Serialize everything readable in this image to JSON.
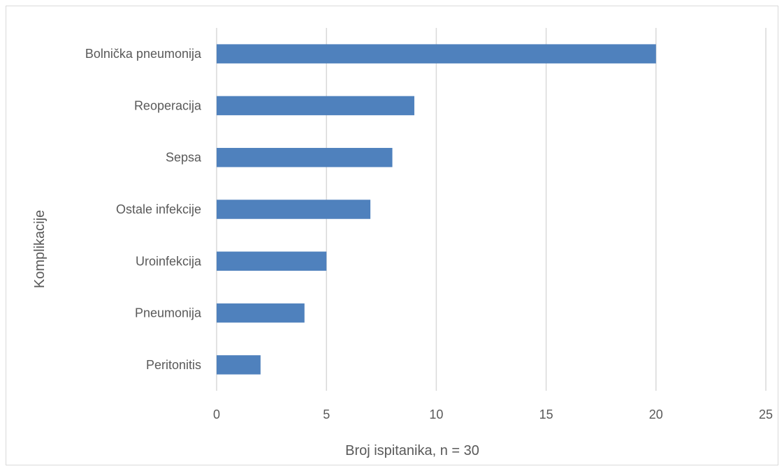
{
  "chart_data": {
    "type": "bar",
    "orientation": "horizontal",
    "title": "",
    "xlabel": "Broj ispitanika, n = 30",
    "ylabel": "Komplikacije",
    "categories": [
      "Bolnička pneumonija",
      "Reoperacija",
      "Sepsa",
      "Ostale infekcije",
      "Uroinfekcija",
      "Pneumonija",
      "Peritonitis"
    ],
    "values": [
      20,
      9,
      8,
      7,
      5,
      4,
      2
    ],
    "xlim": [
      0,
      25
    ],
    "xticks": [
      0,
      5,
      10,
      15,
      20,
      25
    ],
    "grid": "vertical",
    "legend": "none",
    "bar_color": "#4f81bd"
  }
}
